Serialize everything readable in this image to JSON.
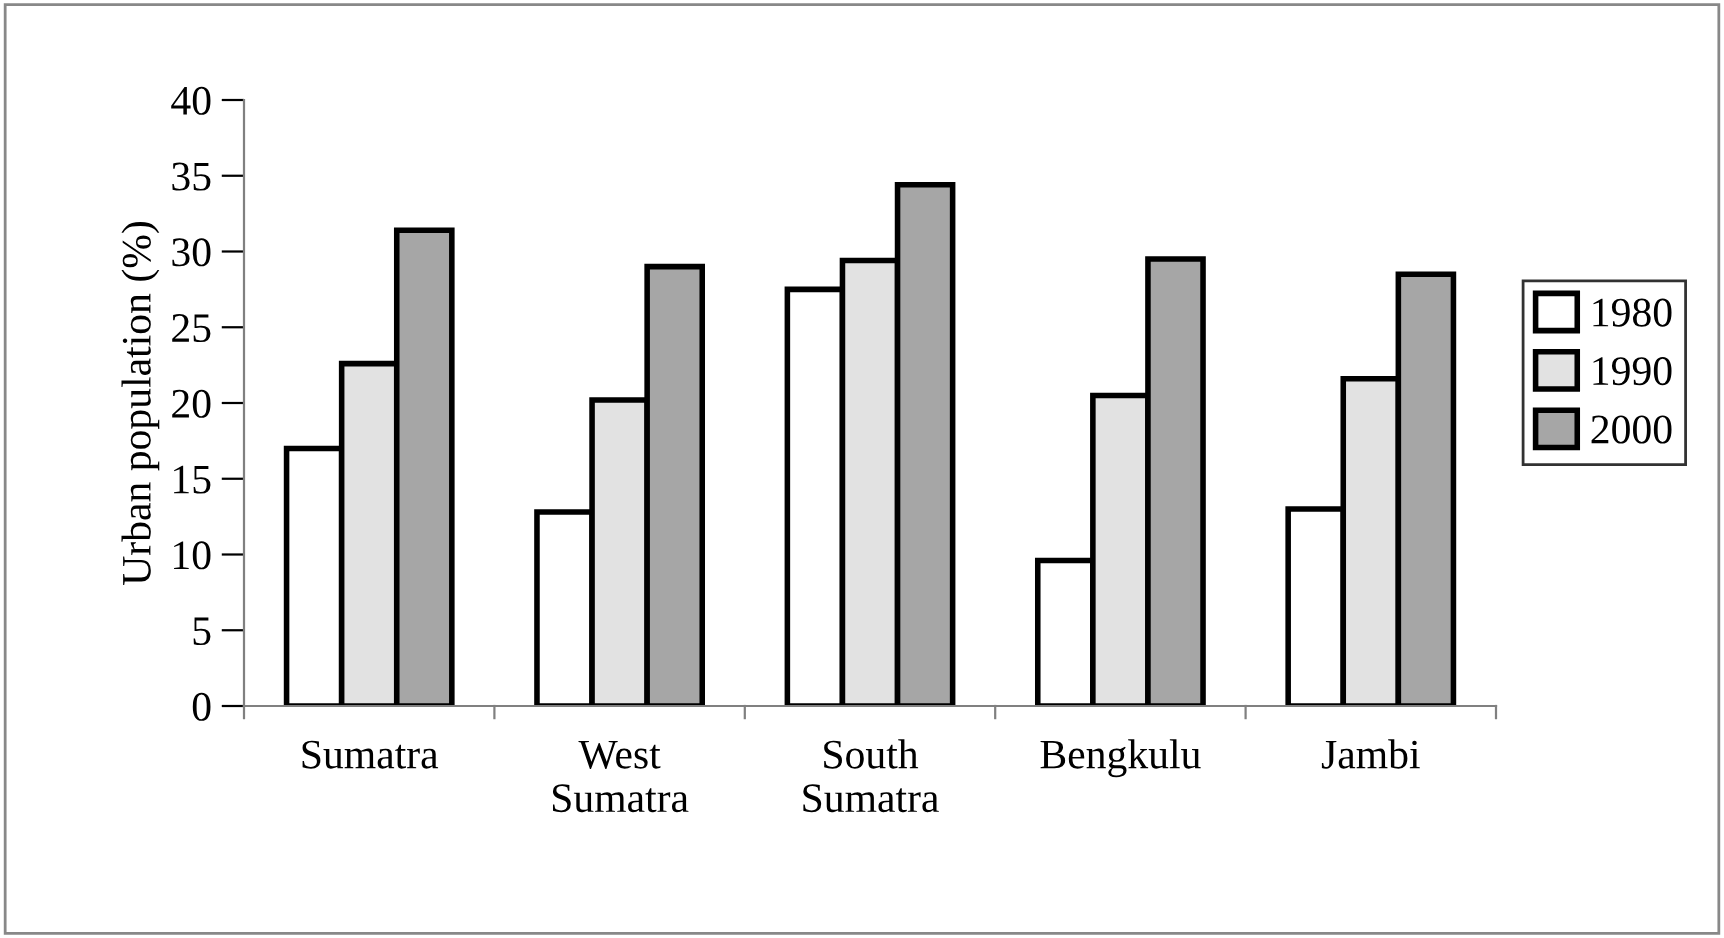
{
  "chart_data": {
    "type": "bar",
    "ylabel": "Urban population (%)",
    "categories": [
      "Sumatra",
      "West\nSumatra",
      "South\nSumatra",
      "Bengkulu",
      "Jambi"
    ],
    "series": [
      {
        "name": "1980",
        "color": "#ffffff",
        "values": [
          17.0,
          12.8,
          27.5,
          9.6,
          13.0
        ]
      },
      {
        "name": "1990",
        "color": "#e2e2e2",
        "values": [
          22.6,
          20.2,
          29.4,
          20.5,
          21.6
        ]
      },
      {
        "name": "2000",
        "color": "#a6a6a6",
        "values": [
          31.4,
          29.0,
          34.4,
          29.5,
          28.5
        ]
      }
    ],
    "ylim": [
      0,
      40
    ],
    "yticks": [
      0,
      5,
      10,
      15,
      20,
      25,
      30,
      35,
      40
    ],
    "grid": false,
    "legend": "right"
  }
}
